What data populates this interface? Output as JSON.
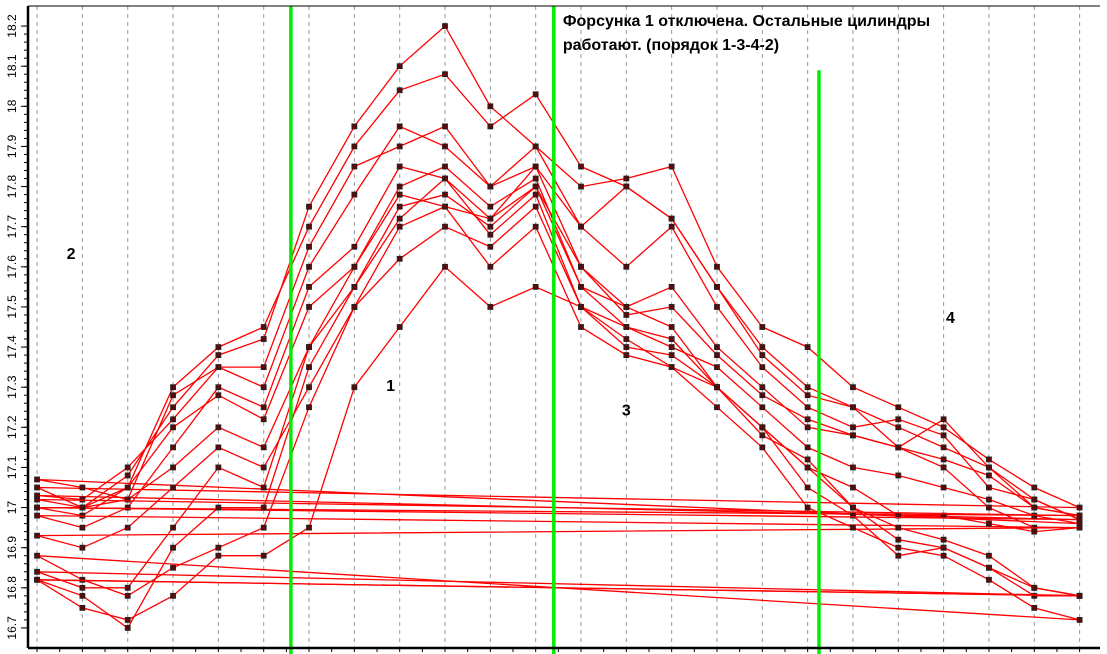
{
  "chart_data": {
    "type": "line",
    "title": "Форсунка 1 отключена. Остальные цилиндры работают. (порядок 1-3-4-2)",
    "title_lines": [
      "Форсунка 1 отключена. Остальные цилиндры",
      "работают. (порядок 1-3-4-2)"
    ],
    "xlabel": "",
    "ylabel": "",
    "ylim": [
      16.65,
      18.25
    ],
    "xlim": [
      -0.4,
      46.9
    ],
    "yticks": [
      16.7,
      16.8,
      16.9,
      17.0,
      17.1,
      17.2,
      17.3,
      17.4,
      17.5,
      17.6,
      17.7,
      17.8,
      17.9,
      18.0,
      18.1,
      18.2
    ],
    "ytick_labels": [
      "16.7",
      "16.8",
      "16.9",
      "17",
      "17.1",
      "17.2",
      "17.3",
      "17.4",
      "17.5",
      "17.6",
      "17.7",
      "17.8",
      "17.9",
      "18",
      "18.1",
      "18.2"
    ],
    "grid": "vertical-dashed",
    "line_color": "#ff0000",
    "marker_color": "#5a0a0a",
    "marker_color_edge": "#222222",
    "wrap_to_start": true,
    "x": [
      0,
      2,
      4,
      6,
      8,
      10,
      12,
      14,
      16,
      18,
      20,
      22,
      24,
      26,
      28,
      30,
      32,
      34,
      36,
      38,
      40,
      42,
      44,
      46
    ],
    "series": [
      {
        "name": "s1",
        "values": [
          17.05,
          17.0,
          17.08,
          17.25,
          17.38,
          17.42,
          17.75,
          17.95,
          18.1,
          18.2,
          18.0,
          17.9,
          17.8,
          17.82,
          17.85,
          17.6,
          17.45,
          17.4,
          17.3,
          17.25,
          17.2,
          17.12,
          17.05,
          17.0
        ]
      },
      {
        "name": "s2",
        "values": [
          17.0,
          16.98,
          17.05,
          17.3,
          17.4,
          17.45,
          17.7,
          17.9,
          18.04,
          18.08,
          17.95,
          18.03,
          17.85,
          17.8,
          17.72,
          17.55,
          17.4,
          17.3,
          17.25,
          17.2,
          17.15,
          17.1,
          17.0,
          16.98
        ]
      },
      {
        "name": "s3",
        "values": [
          17.03,
          17.02,
          17.1,
          17.22,
          17.35,
          17.3,
          17.6,
          17.78,
          17.95,
          17.9,
          17.8,
          17.9,
          17.7,
          17.6,
          17.7,
          17.5,
          17.35,
          17.25,
          17.2,
          17.22,
          17.18,
          17.05,
          17.02,
          16.97
        ]
      },
      {
        "name": "s4",
        "values": [
          16.98,
          16.95,
          17.0,
          17.15,
          17.3,
          17.25,
          17.55,
          17.65,
          17.85,
          17.82,
          17.72,
          17.85,
          17.6,
          17.5,
          17.55,
          17.4,
          17.3,
          17.2,
          17.18,
          17.15,
          17.1,
          17.0,
          16.95,
          16.95
        ]
      },
      {
        "name": "s5",
        "values": [
          17.07,
          17.05,
          17.02,
          17.1,
          17.2,
          17.15,
          17.4,
          17.55,
          17.75,
          17.78,
          17.7,
          17.8,
          17.55,
          17.45,
          17.4,
          17.35,
          17.25,
          17.15,
          17.1,
          17.08,
          17.05,
          17.02,
          16.98,
          16.96
        ]
      },
      {
        "name": "s6",
        "values": [
          16.93,
          16.9,
          16.95,
          17.05,
          17.15,
          17.1,
          17.3,
          17.5,
          17.62,
          17.7,
          17.65,
          17.75,
          17.5,
          17.4,
          17.38,
          17.3,
          17.2,
          17.1,
          17.05,
          16.98,
          16.98,
          16.96,
          16.94,
          16.95
        ]
      },
      {
        "name": "s7",
        "values": [
          16.82,
          16.75,
          16.72,
          16.78,
          16.88,
          16.88,
          16.95,
          17.3,
          17.45,
          17.6,
          17.5,
          17.55,
          17.5,
          17.42,
          17.35,
          17.3,
          17.2,
          17.05,
          16.98,
          16.88,
          16.9,
          16.85,
          16.78,
          16.78
        ]
      },
      {
        "name": "s8",
        "values": [
          16.88,
          16.82,
          16.78,
          16.85,
          16.9,
          16.95,
          17.25,
          17.5,
          17.7,
          17.75,
          17.6,
          17.7,
          17.45,
          17.38,
          17.35,
          17.25,
          17.15,
          17.0,
          16.95,
          16.9,
          16.88,
          16.82,
          16.75,
          16.72
        ]
      },
      {
        "name": "s9",
        "values": [
          16.84,
          16.8,
          16.8,
          16.95,
          17.1,
          17.05,
          17.4,
          17.6,
          17.8,
          17.85,
          17.75,
          17.82,
          17.55,
          17.5,
          17.45,
          17.3,
          17.18,
          17.12,
          17.0,
          16.95,
          16.92,
          16.88,
          16.8,
          16.78
        ]
      },
      {
        "name": "s10",
        "values": [
          17.0,
          17.0,
          17.02,
          17.28,
          17.35,
          17.35,
          17.65,
          17.85,
          17.9,
          17.95,
          17.8,
          17.85,
          17.7,
          17.8,
          17.72,
          17.55,
          17.38,
          17.28,
          17.25,
          17.15,
          17.22,
          17.1,
          17.02,
          16.97
        ]
      },
      {
        "name": "s11",
        "values": [
          16.82,
          16.78,
          16.7,
          16.9,
          17.0,
          17.0,
          17.35,
          17.55,
          17.72,
          17.82,
          17.68,
          17.78,
          17.5,
          17.45,
          17.42,
          17.3,
          17.2,
          17.1,
          17.0,
          16.92,
          16.9,
          16.85,
          16.8,
          16.78
        ]
      },
      {
        "name": "s12",
        "values": [
          17.02,
          17.0,
          17.05,
          17.2,
          17.28,
          17.22,
          17.5,
          17.6,
          17.78,
          17.75,
          17.72,
          17.8,
          17.6,
          17.48,
          17.5,
          17.38,
          17.28,
          17.22,
          17.18,
          17.15,
          17.12,
          17.08,
          17.0,
          16.98
        ]
      }
    ],
    "markers_vertical": [
      {
        "x": 11.2,
        "ymax": 18.25,
        "color": "#00ee00"
      },
      {
        "x": 22.8,
        "ymax": 18.25,
        "color": "#00ee00"
      },
      {
        "x": 34.5,
        "ymax": 18.09,
        "color": "#00ee00"
      }
    ],
    "annotations": [
      {
        "text": "1",
        "x": 15.6,
        "y": 17.29
      },
      {
        "text": "2",
        "x": 1.5,
        "y": 17.62
      },
      {
        "text": "3",
        "x": 26.0,
        "y": 17.23
      },
      {
        "text": "4",
        "x": 40.3,
        "y": 17.46
      }
    ],
    "title_position": {
      "x": 23.2,
      "y": 18.2
    }
  }
}
